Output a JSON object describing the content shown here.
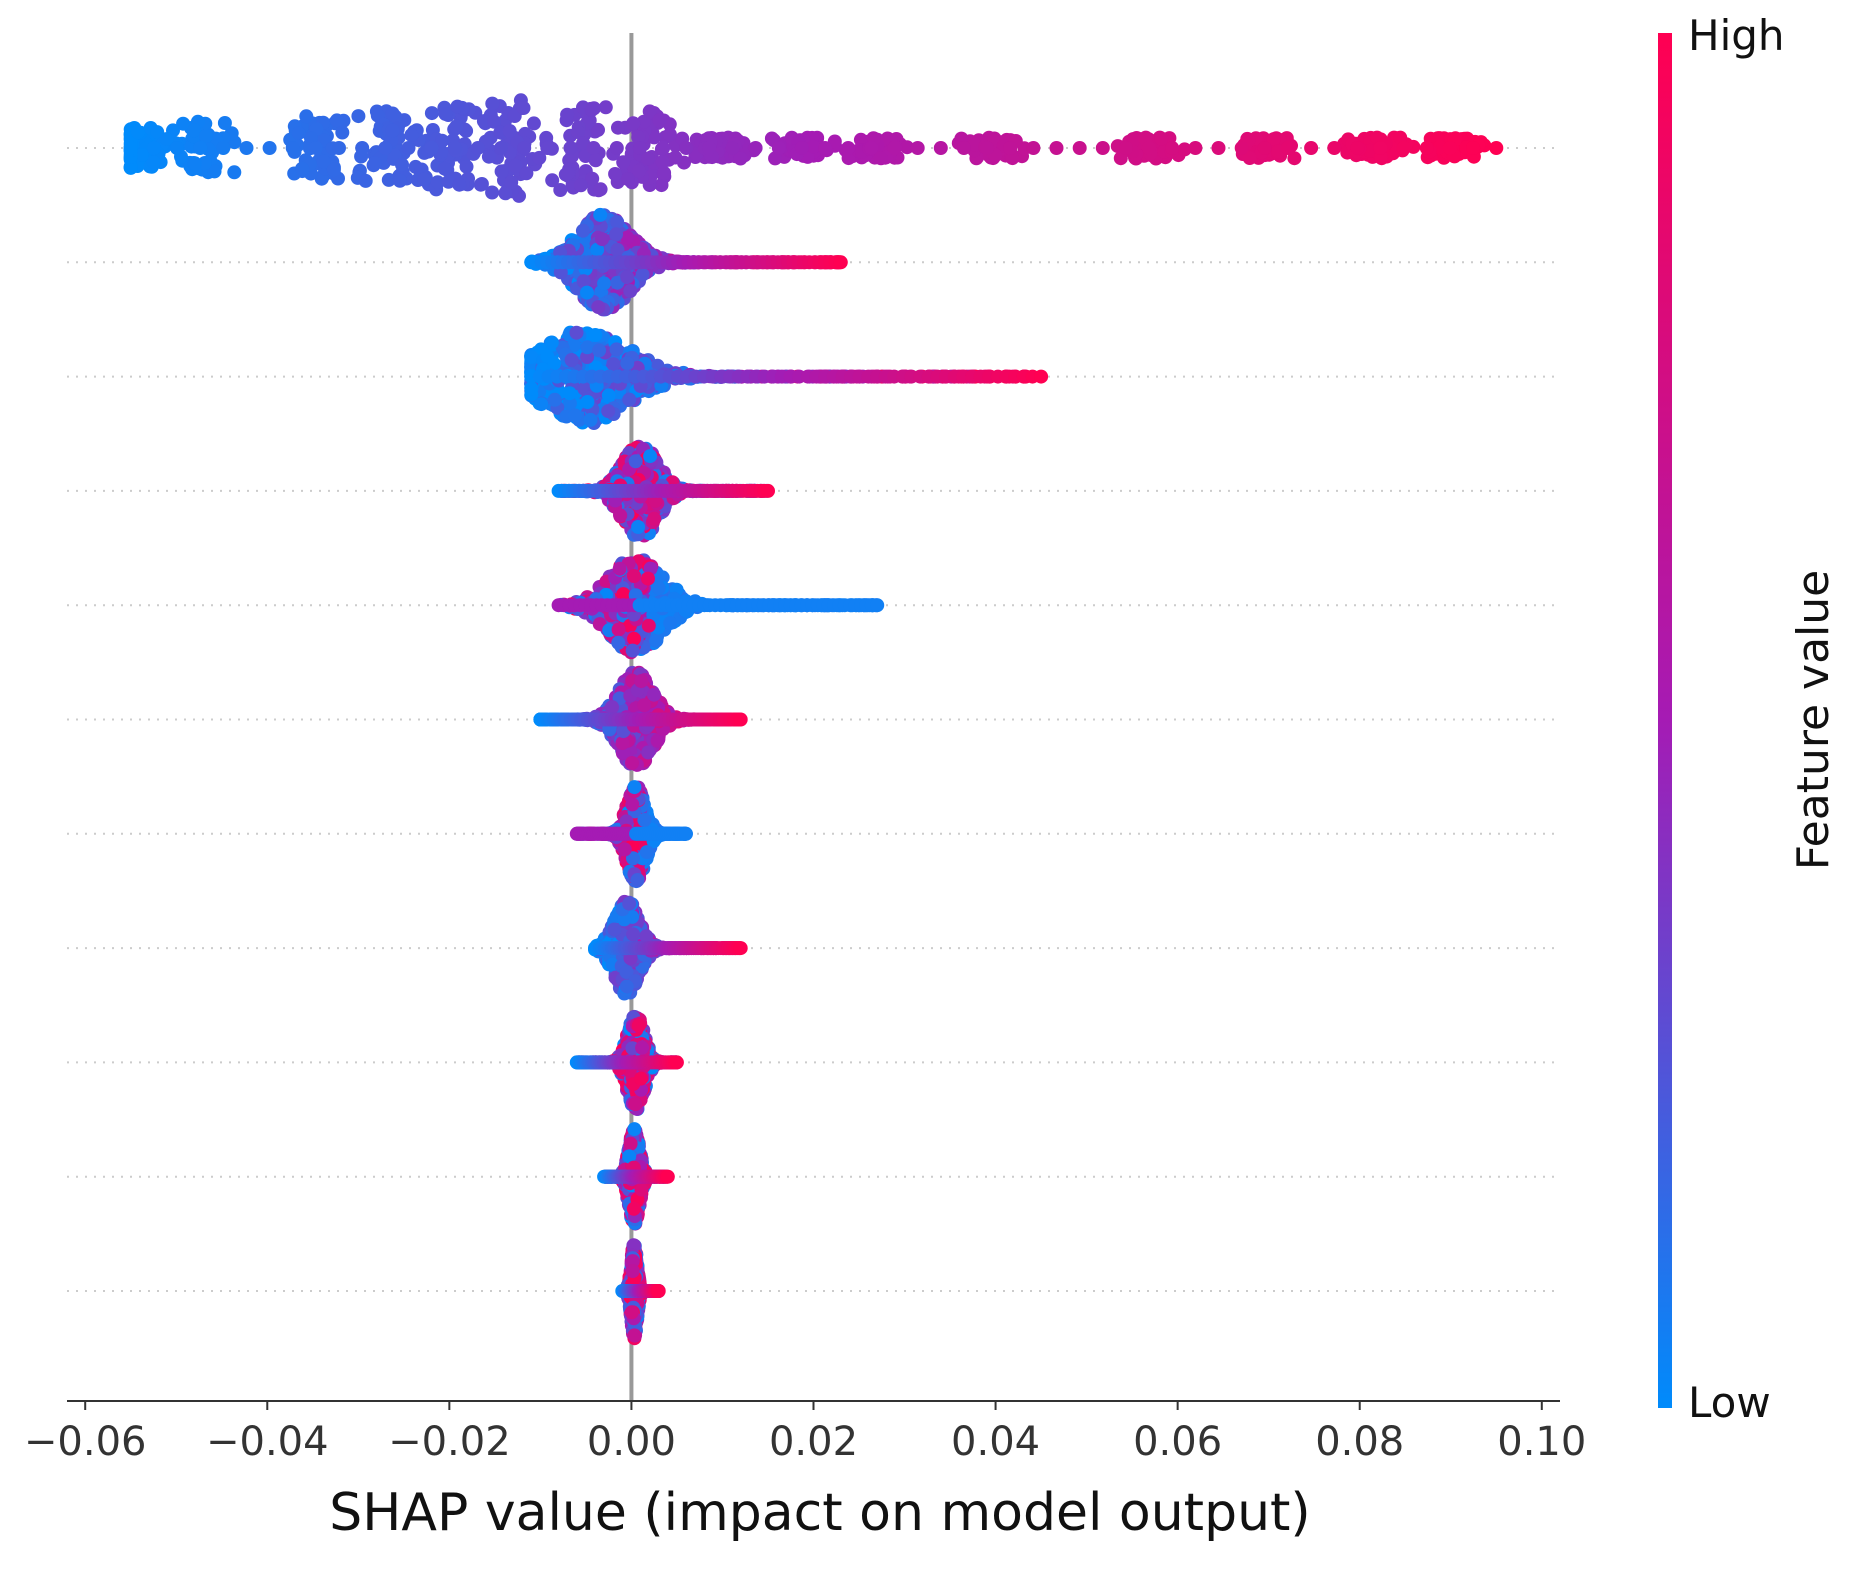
{
  "chart_data": {
    "type": "scatter",
    "subtype": "shap-beeswarm",
    "xlabel": "SHAP value (impact on model output)",
    "xlim": [
      -0.062,
      0.102
    ],
    "xticks": [
      -0.06,
      -0.04,
      -0.02,
      0.0,
      0.02,
      0.04,
      0.06,
      0.08,
      0.1
    ],
    "xtick_labels": [
      "−0.06",
      "−0.04",
      "−0.02",
      "0.00",
      "0.02",
      "0.04",
      "0.06",
      "0.08",
      "0.10"
    ],
    "zero_line": true,
    "row_gridlines": "dotted",
    "colorbar": {
      "title": "Feature value",
      "high_label": "High",
      "low_label": "Low",
      "low_color": "#008bfb",
      "mid_color": "#a51bb4",
      "high_color": "#ff0052",
      "placement": "right"
    },
    "features": [
      {
        "rank": 1,
        "min": -0.055,
        "max": 0.095,
        "relation": "positive",
        "clusters": [
          -0.054,
          -0.047,
          -0.035,
          -0.027,
          -0.02,
          -0.013,
          -0.0055,
          0.002,
          0.0095,
          0.019,
          0.027,
          0.04,
          0.057,
          0.07,
          0.082,
          0.09
        ]
      },
      {
        "rank": 2,
        "min": -0.011,
        "max": 0.023,
        "relation": "positive-tail",
        "peak": -0.003
      },
      {
        "rank": 3,
        "min": -0.011,
        "max": 0.045,
        "relation": "positive",
        "peak": -0.005
      },
      {
        "rank": 4,
        "min": -0.008,
        "max": 0.015,
        "relation": "mixed",
        "peak": 0.001
      },
      {
        "rank": 5,
        "min": -0.008,
        "max": 0.027,
        "relation": "negative",
        "peak": 0.0005
      },
      {
        "rank": 6,
        "min": -0.01,
        "max": 0.012,
        "relation": "positive",
        "peak": 0.0005
      },
      {
        "rank": 7,
        "min": -0.006,
        "max": 0.006,
        "relation": "negative",
        "peak": 0.0005
      },
      {
        "rank": 8,
        "min": -0.004,
        "max": 0.012,
        "relation": "positive-tail",
        "peak": -0.0005
      },
      {
        "rank": 9,
        "min": -0.006,
        "max": 0.005,
        "relation": "mixed",
        "peak": 0.0005
      },
      {
        "rank": 10,
        "min": -0.003,
        "max": 0.004,
        "relation": "mixed",
        "peak": 0.0003
      },
      {
        "rank": 11,
        "min": -0.001,
        "max": 0.003,
        "relation": "mixed",
        "peak": 0.0003
      }
    ]
  }
}
